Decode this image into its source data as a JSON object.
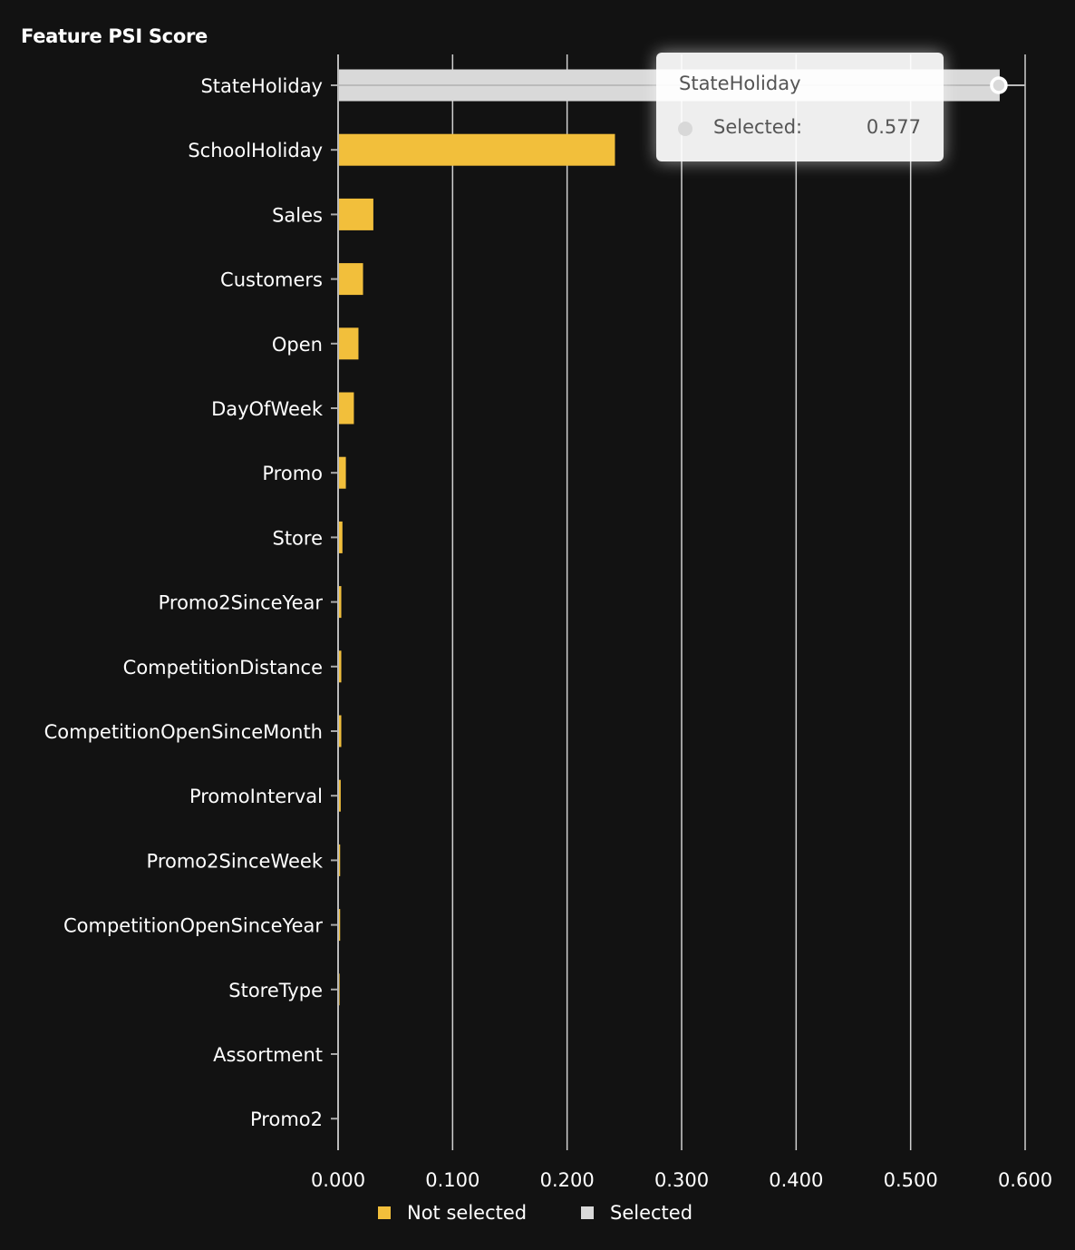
{
  "chart_data": {
    "type": "bar",
    "orientation": "horizontal",
    "title": "Feature PSI Score",
    "categories": [
      "StateHoliday",
      "SchoolHoliday",
      "Sales",
      "Customers",
      "Open",
      "DayOfWeek",
      "Promo",
      "Store",
      "Promo2SinceYear",
      "CompetitionDistance",
      "CompetitionOpenSinceMonth",
      "PromoInterval",
      "Promo2SinceWeek",
      "CompetitionOpenSinceYear",
      "StoreType",
      "Assortment",
      "Promo2"
    ],
    "values": [
      0.577,
      0.241,
      0.03,
      0.021,
      0.017,
      0.013,
      0.006,
      0.003,
      0.002,
      0.002,
      0.002,
      0.0015,
      0.001,
      0.001,
      0.0005,
      0,
      0
    ],
    "selected": [
      true,
      false,
      false,
      false,
      false,
      false,
      false,
      false,
      false,
      false,
      false,
      false,
      false,
      false,
      false,
      false,
      false
    ],
    "xlim": [
      0,
      0.6
    ],
    "xticks": [
      "0.000",
      "0.100",
      "0.200",
      "0.300",
      "0.400",
      "0.500",
      "0.600"
    ],
    "grid": true,
    "legend": {
      "position": "bottom",
      "entries": [
        {
          "label": "Not selected",
          "color": "#f2bf3b"
        },
        {
          "label": "Selected",
          "color": "#d9d9d9"
        }
      ]
    },
    "tooltip": {
      "title": "StateHoliday",
      "label": "Selected:",
      "value": "0.577"
    }
  }
}
